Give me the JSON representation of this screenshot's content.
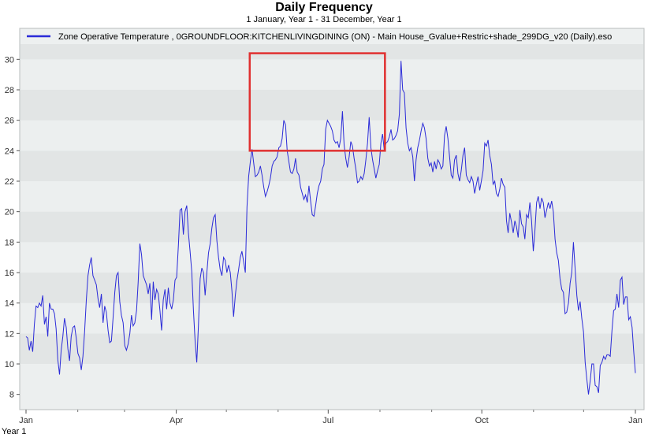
{
  "chart_data": {
    "type": "line",
    "title": "Daily Frequency",
    "subtitle": "1 January, Year 1 - 31 December, Year 1",
    "year_label": "Year 1",
    "xlabel": "",
    "ylabel": "",
    "ylim": [
      7,
      31
    ],
    "yticks": [
      8,
      10,
      12,
      14,
      16,
      18,
      20,
      22,
      24,
      26,
      28,
      30
    ],
    "xlim": [
      1,
      366
    ],
    "xticks": [
      {
        "day": 1,
        "label": "Jan"
      },
      {
        "day": 91,
        "label": "Apr"
      },
      {
        "day": 182,
        "label": "Jul"
      },
      {
        "day": 274,
        "label": "Oct"
      },
      {
        "day": 366,
        "label": "Jan"
      }
    ],
    "minor_xticks": [
      32,
      60,
      121,
      152,
      213,
      244,
      305,
      335
    ],
    "grid": "horizontal bands",
    "legend_position": "top",
    "colors": {
      "series": "#2b2bd8",
      "highlight_box": "#e03030",
      "band_light": "#ecefef",
      "band_dark": "#e2e5e5"
    },
    "highlight": {
      "x_start_day": 135,
      "x_end_day": 216,
      "y_low": 24,
      "y_high": 30.4
    },
    "series": [
      {
        "name": "Zone Operative Temperature , 0GROUNDFLOOR:KITCHENLIVINGDINING (ON) - Main  House_Gvalue+Restric+shade_299DG_v20 (Daily).eso",
        "color": "#2b2bd8",
        "values": [
          11.8,
          11.7,
          10.9,
          11.5,
          10.8,
          12.6,
          13.8,
          13.7,
          14.0,
          13.8,
          14.5,
          12.6,
          13.1,
          11.8,
          14.0,
          13.6,
          13.6,
          13.3,
          12.3,
          10.3,
          9.3,
          10.9,
          11.8,
          13.0,
          12.4,
          11.0,
          10.2,
          11.8,
          12.4,
          12.5,
          11.7,
          10.7,
          10.4,
          9.6,
          10.5,
          12.1,
          14.2,
          15.8,
          16.5,
          17.0,
          15.8,
          15.5,
          15.2,
          14.3,
          13.7,
          14.6,
          12.7,
          13.8,
          13.4,
          12.2,
          11.4,
          11.5,
          13.0,
          14.7,
          15.8,
          16.0,
          14.1,
          13.2,
          12.7,
          11.2,
          10.9,
          11.3,
          12.0,
          13.2,
          12.5,
          12.7,
          13.5,
          15.4,
          17.9,
          17.2,
          15.8,
          15.5,
          15.2,
          14.6,
          15.3,
          12.9,
          15.4,
          14.2,
          14.9,
          14.6,
          13.5,
          12.2,
          14.2,
          14.9,
          13.6,
          15.0,
          14.0,
          13.6,
          14.2,
          15.5,
          15.7,
          17.8,
          20.1,
          20.2,
          18.5,
          20.0,
          20.4,
          18.6,
          17.4,
          16.1,
          13.5,
          11.5,
          10.1,
          12.5,
          15.6,
          16.3,
          16.0,
          14.5,
          16.0,
          17.3,
          17.9,
          18.9,
          19.6,
          19.8,
          18.1,
          17.0,
          16.2,
          15.8,
          17.0,
          16.8,
          16.0,
          16.5,
          16.0,
          14.8,
          13.1,
          14.5,
          15.5,
          16.2,
          17.0,
          17.4,
          16.7,
          16.0,
          20.3,
          22.3,
          23.3,
          24.1,
          23.2,
          22.3,
          22.4,
          22.6,
          23.0,
          22.4,
          21.6,
          21.0,
          21.3,
          21.7,
          22.2,
          23.0,
          23.3,
          23.4,
          23.6,
          24.2,
          24.3,
          24.8,
          26.0,
          25.7,
          24.0,
          23.3,
          22.6,
          22.5,
          22.8,
          23.5,
          22.6,
          22.4,
          21.6,
          21.2,
          20.8,
          21.1,
          20.6,
          21.7,
          20.7,
          19.8,
          19.7,
          20.4,
          21.2,
          21.7,
          22.0,
          22.8,
          23.1,
          25.4,
          26.0,
          25.8,
          25.6,
          25.3,
          24.7,
          24.5,
          24.6,
          24.2,
          24.8,
          26.6,
          24.4,
          23.5,
          22.9,
          23.6,
          24.6,
          24.3,
          23.5,
          22.8,
          21.9,
          22.0,
          22.3,
          22.1,
          22.5,
          23.4,
          24.5,
          26.2,
          24.2,
          23.4,
          22.8,
          22.2,
          22.7,
          23.1,
          24.5,
          25.1,
          24.0,
          24.5,
          24.6,
          24.9,
          25.4,
          24.7,
          24.8,
          25.0,
          25.3,
          26.4,
          29.9,
          28.0,
          27.8,
          25.5,
          24.5,
          24.0,
          24.2,
          23.6,
          22.0,
          23.4,
          24.2,
          24.7,
          25.3,
          25.8,
          25.5,
          24.8,
          23.5,
          23.0,
          23.2,
          22.6,
          23.3,
          22.8,
          23.4,
          23.2,
          22.8,
          23.0,
          25.0,
          25.6,
          24.8,
          23.6,
          22.4,
          22.2,
          23.4,
          23.7,
          22.5,
          22.0,
          22.7,
          23.7,
          24.2,
          22.4,
          22.1,
          21.9,
          22.3,
          22.0,
          21.2,
          21.8,
          22.3,
          21.4,
          22.0,
          22.7,
          24.5,
          24.3,
          24.7,
          23.7,
          23.1,
          21.8,
          22.0,
          21.2,
          21.0,
          21.5,
          22.2,
          21.8,
          21.6,
          19.4,
          18.6,
          19.9,
          19.3,
          18.6,
          19.4,
          19.0,
          18.3,
          20.1,
          19.2,
          19.0,
          18.2,
          19.8,
          19.6,
          20.6,
          19.4,
          17.4,
          18.8,
          20.6,
          21.0,
          20.2,
          20.9,
          20.6,
          19.6,
          20.1,
          20.6,
          20.2,
          20.7,
          20.0,
          18.2,
          17.3,
          16.8,
          15.6,
          14.9,
          14.7,
          13.3,
          13.4,
          14.0,
          15.3,
          16.0,
          18.0,
          16.3,
          14.5,
          13.5,
          14.1,
          13.0,
          12.1,
          10.1,
          9.0,
          8.0,
          8.9,
          10.0,
          10.0,
          8.6,
          8.5,
          8.1,
          9.9,
          10.1,
          10.5,
          10.3,
          10.6,
          10.6,
          10.5,
          12.2,
          13.5,
          13.6,
          14.6,
          13.7,
          15.5,
          15.7,
          13.9,
          14.4,
          14.4,
          12.9,
          13.1,
          12.4,
          10.8,
          9.4
        ]
      }
    ]
  }
}
